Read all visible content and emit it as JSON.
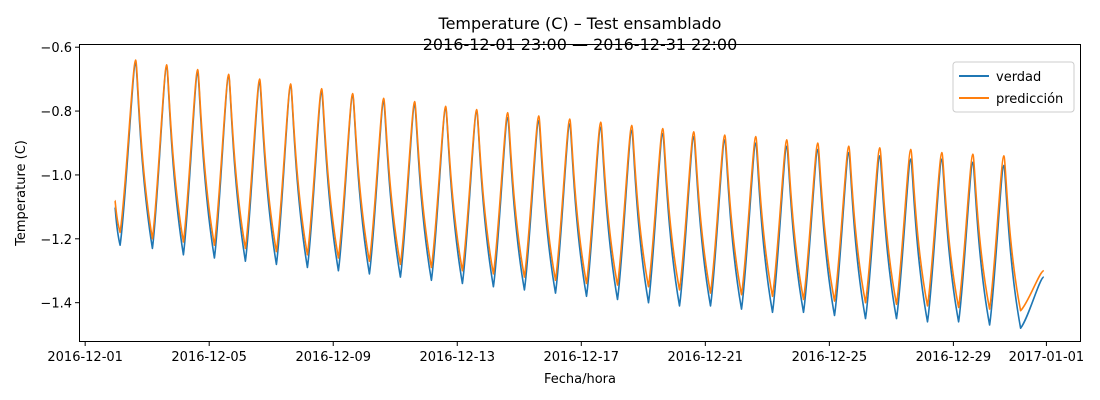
{
  "chart_data": {
    "type": "line",
    "title": "Temperature (C) – Test ensamblado",
    "subtitle": "2016-12-01 23:00 — 2016-12-31 22:00",
    "xlabel": "Fecha/hora",
    "ylabel": "Temperature (C)",
    "xlim": [
      "2016-11-30T20:00",
      "2017-01-02T02:00"
    ],
    "ylim": [
      -1.52,
      -0.59
    ],
    "x_ticks": [
      "2016-12-01",
      "2016-12-05",
      "2016-12-09",
      "2016-12-13",
      "2016-12-17",
      "2016-12-21",
      "2016-12-25",
      "2016-12-29",
      "2017-01-01"
    ],
    "y_ticks": [
      -1.4,
      -1.2,
      -1.0,
      -0.8,
      -0.6
    ],
    "y_tick_labels": [
      "−1.4",
      "−1.2",
      "−1.0",
      "−0.8",
      "−0.6"
    ],
    "legend": {
      "position": "top-right"
    },
    "grid": false,
    "series": [
      {
        "name": "verdad",
        "color": "#1f77b4",
        "peaks": [
          {
            "x": "2016-12-02T15:00",
            "y": -0.65
          },
          {
            "x": "2016-12-03T15:00",
            "y": -0.66
          },
          {
            "x": "2016-12-04T15:00",
            "y": -0.68
          },
          {
            "x": "2016-12-05T15:00",
            "y": -0.69
          },
          {
            "x": "2016-12-06T15:00",
            "y": -0.71
          },
          {
            "x": "2016-12-07T15:00",
            "y": -0.72
          },
          {
            "x": "2016-12-08T15:00",
            "y": -0.74
          },
          {
            "x": "2016-12-09T15:00",
            "y": -0.75
          },
          {
            "x": "2016-12-10T15:00",
            "y": -0.77
          },
          {
            "x": "2016-12-11T15:00",
            "y": -0.78
          },
          {
            "x": "2016-12-12T15:00",
            "y": -0.79
          },
          {
            "x": "2016-12-13T15:00",
            "y": -0.8
          },
          {
            "x": "2016-12-14T15:00",
            "y": -0.82
          },
          {
            "x": "2016-12-15T15:00",
            "y": -0.83
          },
          {
            "x": "2016-12-16T15:00",
            "y": -0.84
          },
          {
            "x": "2016-12-17T15:00",
            "y": -0.85
          },
          {
            "x": "2016-12-18T15:00",
            "y": -0.86
          },
          {
            "x": "2016-12-19T15:00",
            "y": -0.87
          },
          {
            "x": "2016-12-20T15:00",
            "y": -0.88
          },
          {
            "x": "2016-12-21T15:00",
            "y": -0.89
          },
          {
            "x": "2016-12-22T15:00",
            "y": -0.9
          },
          {
            "x": "2016-12-23T15:00",
            "y": -0.91
          },
          {
            "x": "2016-12-24T15:00",
            "y": -0.92
          },
          {
            "x": "2016-12-25T15:00",
            "y": -0.93
          },
          {
            "x": "2016-12-26T15:00",
            "y": -0.94
          },
          {
            "x": "2016-12-27T15:00",
            "y": -0.95
          },
          {
            "x": "2016-12-28T15:00",
            "y": -0.95
          },
          {
            "x": "2016-12-29T15:00",
            "y": -0.96
          },
          {
            "x": "2016-12-30T15:00",
            "y": -0.97
          }
        ],
        "troughs": [
          {
            "x": "2016-12-02T03:00",
            "y": -1.22
          },
          {
            "x": "2016-12-03T04:00",
            "y": -1.23
          },
          {
            "x": "2016-12-04T04:00",
            "y": -1.25
          },
          {
            "x": "2016-12-05T04:00",
            "y": -1.26
          },
          {
            "x": "2016-12-06T04:00",
            "y": -1.27
          },
          {
            "x": "2016-12-07T04:00",
            "y": -1.28
          },
          {
            "x": "2016-12-08T04:00",
            "y": -1.29
          },
          {
            "x": "2016-12-09T04:00",
            "y": -1.3
          },
          {
            "x": "2016-12-10T04:00",
            "y": -1.31
          },
          {
            "x": "2016-12-11T04:00",
            "y": -1.32
          },
          {
            "x": "2016-12-12T04:00",
            "y": -1.33
          },
          {
            "x": "2016-12-13T04:00",
            "y": -1.34
          },
          {
            "x": "2016-12-14T04:00",
            "y": -1.35
          },
          {
            "x": "2016-12-15T04:00",
            "y": -1.36
          },
          {
            "x": "2016-12-16T04:00",
            "y": -1.37
          },
          {
            "x": "2016-12-17T04:00",
            "y": -1.38
          },
          {
            "x": "2016-12-18T04:00",
            "y": -1.39
          },
          {
            "x": "2016-12-19T04:00",
            "y": -1.4
          },
          {
            "x": "2016-12-20T04:00",
            "y": -1.41
          },
          {
            "x": "2016-12-21T04:00",
            "y": -1.41
          },
          {
            "x": "2016-12-22T04:00",
            "y": -1.42
          },
          {
            "x": "2016-12-23T04:00",
            "y": -1.43
          },
          {
            "x": "2016-12-24T04:00",
            "y": -1.43
          },
          {
            "x": "2016-12-25T04:00",
            "y": -1.44
          },
          {
            "x": "2016-12-26T04:00",
            "y": -1.45
          },
          {
            "x": "2016-12-27T04:00",
            "y": -1.45
          },
          {
            "x": "2016-12-28T04:00",
            "y": -1.46
          },
          {
            "x": "2016-12-29T04:00",
            "y": -1.46
          },
          {
            "x": "2016-12-30T04:00",
            "y": -1.47
          },
          {
            "x": "2016-12-31T04:00",
            "y": -1.48
          }
        ],
        "start": {
          "x": "2016-12-01T23:00",
          "y": -1.1
        },
        "end": {
          "x": "2016-12-31T22:00",
          "y": -1.32
        }
      },
      {
        "name": "predicción",
        "color": "#ff7f0e",
        "peaks": [
          {
            "x": "2016-12-02T15:00",
            "y": -0.64
          },
          {
            "x": "2016-12-03T15:00",
            "y": -0.655
          },
          {
            "x": "2016-12-04T15:00",
            "y": -0.67
          },
          {
            "x": "2016-12-05T15:00",
            "y": -0.685
          },
          {
            "x": "2016-12-06T15:00",
            "y": -0.7
          },
          {
            "x": "2016-12-07T15:00",
            "y": -0.715
          },
          {
            "x": "2016-12-08T15:00",
            "y": -0.73
          },
          {
            "x": "2016-12-09T15:00",
            "y": -0.745
          },
          {
            "x": "2016-12-10T15:00",
            "y": -0.76
          },
          {
            "x": "2016-12-11T15:00",
            "y": -0.77
          },
          {
            "x": "2016-12-12T15:00",
            "y": -0.785
          },
          {
            "x": "2016-12-13T15:00",
            "y": -0.795
          },
          {
            "x": "2016-12-14T15:00",
            "y": -0.805
          },
          {
            "x": "2016-12-15T15:00",
            "y": -0.815
          },
          {
            "x": "2016-12-16T15:00",
            "y": -0.825
          },
          {
            "x": "2016-12-17T15:00",
            "y": -0.835
          },
          {
            "x": "2016-12-18T15:00",
            "y": -0.845
          },
          {
            "x": "2016-12-19T15:00",
            "y": -0.855
          },
          {
            "x": "2016-12-20T15:00",
            "y": -0.865
          },
          {
            "x": "2016-12-21T15:00",
            "y": -0.875
          },
          {
            "x": "2016-12-22T15:00",
            "y": -0.88
          },
          {
            "x": "2016-12-23T15:00",
            "y": -0.89
          },
          {
            "x": "2016-12-24T15:00",
            "y": -0.9
          },
          {
            "x": "2016-12-25T15:00",
            "y": -0.91
          },
          {
            "x": "2016-12-26T15:00",
            "y": -0.915
          },
          {
            "x": "2016-12-27T15:00",
            "y": -0.92
          },
          {
            "x": "2016-12-28T15:00",
            "y": -0.93
          },
          {
            "x": "2016-12-29T15:00",
            "y": -0.935
          },
          {
            "x": "2016-12-30T15:00",
            "y": -0.94
          }
        ],
        "troughs": [
          {
            "x": "2016-12-02T03:00",
            "y": -1.18
          },
          {
            "x": "2016-12-03T04:00",
            "y": -1.2
          },
          {
            "x": "2016-12-04T04:00",
            "y": -1.21
          },
          {
            "x": "2016-12-05T04:00",
            "y": -1.22
          },
          {
            "x": "2016-12-06T04:00",
            "y": -1.23
          },
          {
            "x": "2016-12-07T04:00",
            "y": -1.24
          },
          {
            "x": "2016-12-08T04:00",
            "y": -1.25
          },
          {
            "x": "2016-12-09T04:00",
            "y": -1.26
          },
          {
            "x": "2016-12-10T04:00",
            "y": -1.27
          },
          {
            "x": "2016-12-11T04:00",
            "y": -1.28
          },
          {
            "x": "2016-12-12T04:00",
            "y": -1.29
          },
          {
            "x": "2016-12-13T04:00",
            "y": -1.3
          },
          {
            "x": "2016-12-14T04:00",
            "y": -1.31
          },
          {
            "x": "2016-12-15T04:00",
            "y": -1.32
          },
          {
            "x": "2016-12-16T04:00",
            "y": -1.33
          },
          {
            "x": "2016-12-17T04:00",
            "y": -1.34
          },
          {
            "x": "2016-12-18T04:00",
            "y": -1.345
          },
          {
            "x": "2016-12-19T04:00",
            "y": -1.35
          },
          {
            "x": "2016-12-20T04:00",
            "y": -1.36
          },
          {
            "x": "2016-12-21T04:00",
            "y": -1.37
          },
          {
            "x": "2016-12-22T04:00",
            "y": -1.375
          },
          {
            "x": "2016-12-23T04:00",
            "y": -1.38
          },
          {
            "x": "2016-12-24T04:00",
            "y": -1.39
          },
          {
            "x": "2016-12-25T04:00",
            "y": -1.395
          },
          {
            "x": "2016-12-26T04:00",
            "y": -1.4
          },
          {
            "x": "2016-12-27T04:00",
            "y": -1.405
          },
          {
            "x": "2016-12-28T04:00",
            "y": -1.41
          },
          {
            "x": "2016-12-29T04:00",
            "y": -1.415
          },
          {
            "x": "2016-12-30T04:00",
            "y": -1.42
          },
          {
            "x": "2016-12-31T04:00",
            "y": -1.425
          }
        ],
        "start": {
          "x": "2016-12-01T23:00",
          "y": -1.08
        },
        "end": {
          "x": "2016-12-31T22:00",
          "y": -1.3
        }
      }
    ]
  }
}
